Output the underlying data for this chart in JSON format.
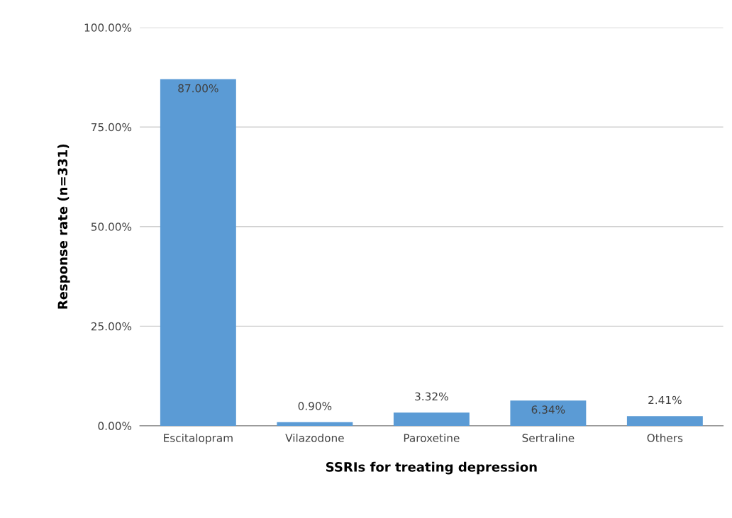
{
  "chart_data": {
    "type": "bar",
    "xlabel": "SSRIs for treating depression",
    "ylabel": "Response rate (n=331)",
    "categories": [
      "Escitalopram",
      "Vilazodone",
      "Paroxetine",
      "Sertraline",
      "Others"
    ],
    "values": [
      87.0,
      0.9,
      3.32,
      6.34,
      2.41
    ],
    "value_labels": [
      "87.00%",
      "0.90%",
      "3.32%",
      "6.34%",
      "2.41%"
    ],
    "color": "#5b9bd5",
    "ylim": [
      0,
      100
    ],
    "yticks": [
      {
        "value": 0,
        "label": "0.00%"
      },
      {
        "value": 25,
        "label": "25.00%"
      },
      {
        "value": 50,
        "label": "50.00%"
      },
      {
        "value": 75,
        "label": "75.00%"
      },
      {
        "value": 100,
        "label": "100.00%"
      }
    ],
    "grid": "y"
  }
}
